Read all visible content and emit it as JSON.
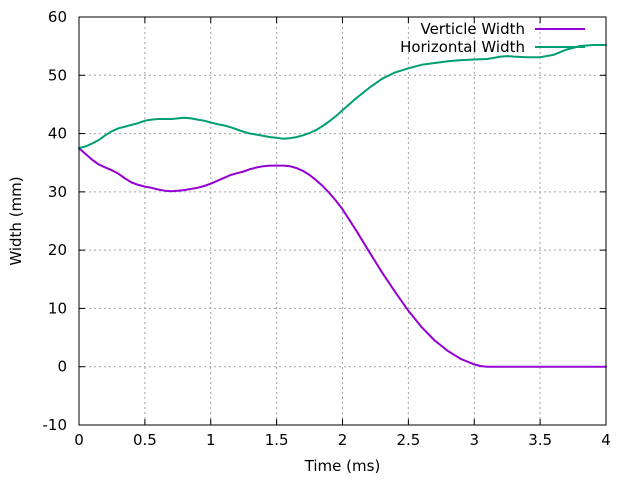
{
  "chart_data": {
    "type": "line",
    "xlabel": "Time (ms)",
    "ylabel": "Width (mm)",
    "xlim": [
      0,
      4
    ],
    "ylim": [
      -10,
      60
    ],
    "x_ticks": [
      {
        "value": 0,
        "label": "0"
      },
      {
        "value": 0.5,
        "label": "0.5"
      },
      {
        "value": 1,
        "label": "1"
      },
      {
        "value": 1.5,
        "label": "1.5"
      },
      {
        "value": 2,
        "label": "2"
      },
      {
        "value": 2.5,
        "label": "2.5"
      },
      {
        "value": 3,
        "label": "3"
      },
      {
        "value": 3.5,
        "label": "3.5"
      },
      {
        "value": 4,
        "label": "4"
      }
    ],
    "y_ticks": [
      {
        "value": -10,
        "label": "-10"
      },
      {
        "value": 0,
        "label": "0"
      },
      {
        "value": 10,
        "label": "10"
      },
      {
        "value": 20,
        "label": "20"
      },
      {
        "value": 30,
        "label": "30"
      },
      {
        "value": 40,
        "label": "40"
      },
      {
        "value": 50,
        "label": "50"
      },
      {
        "value": 60,
        "label": "60"
      }
    ],
    "grid": true,
    "legend_position": "top-right",
    "series": [
      {
        "name": "Verticle Width",
        "color": "#9400d3",
        "x": [
          0,
          0.05,
          0.1,
          0.15,
          0.2,
          0.25,
          0.3,
          0.35,
          0.4,
          0.45,
          0.5,
          0.55,
          0.6,
          0.65,
          0.7,
          0.75,
          0.8,
          0.85,
          0.9,
          0.95,
          1.0,
          1.05,
          1.1,
          1.15,
          1.2,
          1.25,
          1.3,
          1.35,
          1.4,
          1.45,
          1.5,
          1.55,
          1.6,
          1.65,
          1.7,
          1.75,
          1.8,
          1.85,
          1.9,
          1.95,
          2.0,
          2.1,
          2.2,
          2.3,
          2.4,
          2.5,
          2.6,
          2.7,
          2.8,
          2.9,
          3.0,
          3.05,
          3.1,
          3.2,
          3.5,
          4.0
        ],
        "y": [
          37.5,
          36.5,
          35.5,
          34.7,
          34.2,
          33.7,
          33.1,
          32.3,
          31.6,
          31.2,
          30.9,
          30.7,
          30.4,
          30.2,
          30.1,
          30.2,
          30.3,
          30.5,
          30.7,
          31.0,
          31.4,
          31.9,
          32.4,
          32.9,
          33.2,
          33.5,
          33.9,
          34.2,
          34.4,
          34.5,
          34.5,
          34.5,
          34.4,
          34.1,
          33.6,
          32.9,
          32.0,
          31.0,
          29.8,
          28.5,
          27.0,
          23.5,
          19.8,
          16.2,
          12.8,
          9.6,
          6.8,
          4.5,
          2.7,
          1.3,
          0.4,
          0.1,
          0.0,
          0.0,
          0.0,
          0.0
        ]
      },
      {
        "name": "Horizontal Width",
        "color": "#009e73",
        "x": [
          0,
          0.05,
          0.1,
          0.15,
          0.2,
          0.25,
          0.3,
          0.35,
          0.4,
          0.45,
          0.5,
          0.55,
          0.6,
          0.65,
          0.7,
          0.75,
          0.8,
          0.85,
          0.9,
          0.95,
          1.0,
          1.05,
          1.1,
          1.15,
          1.2,
          1.25,
          1.3,
          1.35,
          1.4,
          1.45,
          1.5,
          1.55,
          1.6,
          1.65,
          1.7,
          1.75,
          1.8,
          1.85,
          1.9,
          1.95,
          2.0,
          2.1,
          2.2,
          2.3,
          2.4,
          2.5,
          2.6,
          2.7,
          2.8,
          2.9,
          3.0,
          3.1,
          3.2,
          3.25,
          3.3,
          3.4,
          3.5,
          3.6,
          3.7,
          3.8,
          3.9,
          4.0
        ],
        "y": [
          37.5,
          37.8,
          38.3,
          38.9,
          39.7,
          40.4,
          40.9,
          41.2,
          41.5,
          41.8,
          42.2,
          42.4,
          42.5,
          42.5,
          42.5,
          42.6,
          42.7,
          42.6,
          42.4,
          42.2,
          41.9,
          41.6,
          41.4,
          41.1,
          40.7,
          40.3,
          40.0,
          39.8,
          39.6,
          39.4,
          39.3,
          39.1,
          39.2,
          39.4,
          39.7,
          40.1,
          40.6,
          41.3,
          42.1,
          43.0,
          44.0,
          46.0,
          47.8,
          49.4,
          50.5,
          51.2,
          51.8,
          52.1,
          52.4,
          52.6,
          52.7,
          52.8,
          53.2,
          53.3,
          53.2,
          53.1,
          53.1,
          53.5,
          54.4,
          55.0,
          55.2,
          55.2
        ]
      }
    ]
  }
}
